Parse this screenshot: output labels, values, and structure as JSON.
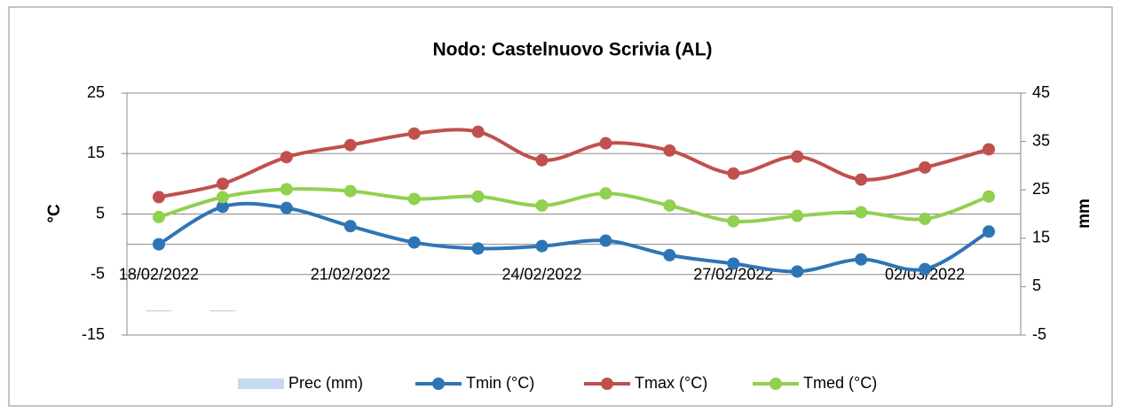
{
  "chart_data": {
    "type": "line",
    "title": "Nodo: Castelnuovo Scrivia (AL)",
    "ylabel": "°C",
    "y2label": "mm",
    "categories": [
      "18/02/2022",
      null,
      null,
      "21/02/2022",
      null,
      null,
      "24/02/2022",
      null,
      null,
      "27/02/2022",
      null,
      null,
      "02/03/2022",
      null
    ],
    "series": [
      {
        "name": "Prec (mm)",
        "type": "bar",
        "axis": "y2",
        "color": "#c6d9f0",
        "values": [
          0,
          0,
          null,
          null,
          null,
          null,
          null,
          null,
          null,
          null,
          null,
          null,
          null,
          null
        ]
      },
      {
        "name": "Tmin (°C)",
        "color": "#2e75b6",
        "values": [
          0,
          6.2,
          6,
          3,
          0.3,
          -0.7,
          -0.3,
          0.6,
          -1.8,
          -3.2,
          -4.5,
          -2.5,
          -4.1,
          2.1
        ]
      },
      {
        "name": "Tmax (°C)",
        "color": "#c0504d",
        "values": [
          7.8,
          10,
          14.4,
          16.4,
          18.3,
          18.6,
          13.9,
          16.7,
          15.5,
          11.7,
          14.5,
          10.7,
          12.7,
          15.7
        ]
      },
      {
        "name": "Tmed (°C)",
        "color": "#92d050",
        "values": [
          4.5,
          7.8,
          9.1,
          8.8,
          7.5,
          7.9,
          6.4,
          8.4,
          6.4,
          3.8,
          4.7,
          5.3,
          4.2,
          7.9
        ]
      }
    ],
    "ylim": [
      -15,
      25
    ],
    "yticks": [
      -15,
      -5,
      5,
      15,
      25
    ],
    "y2lim": [
      -5,
      45
    ],
    "y2ticks": [
      -5,
      5,
      15,
      25,
      35,
      45
    ],
    "grid": true,
    "legend": "bottom"
  }
}
